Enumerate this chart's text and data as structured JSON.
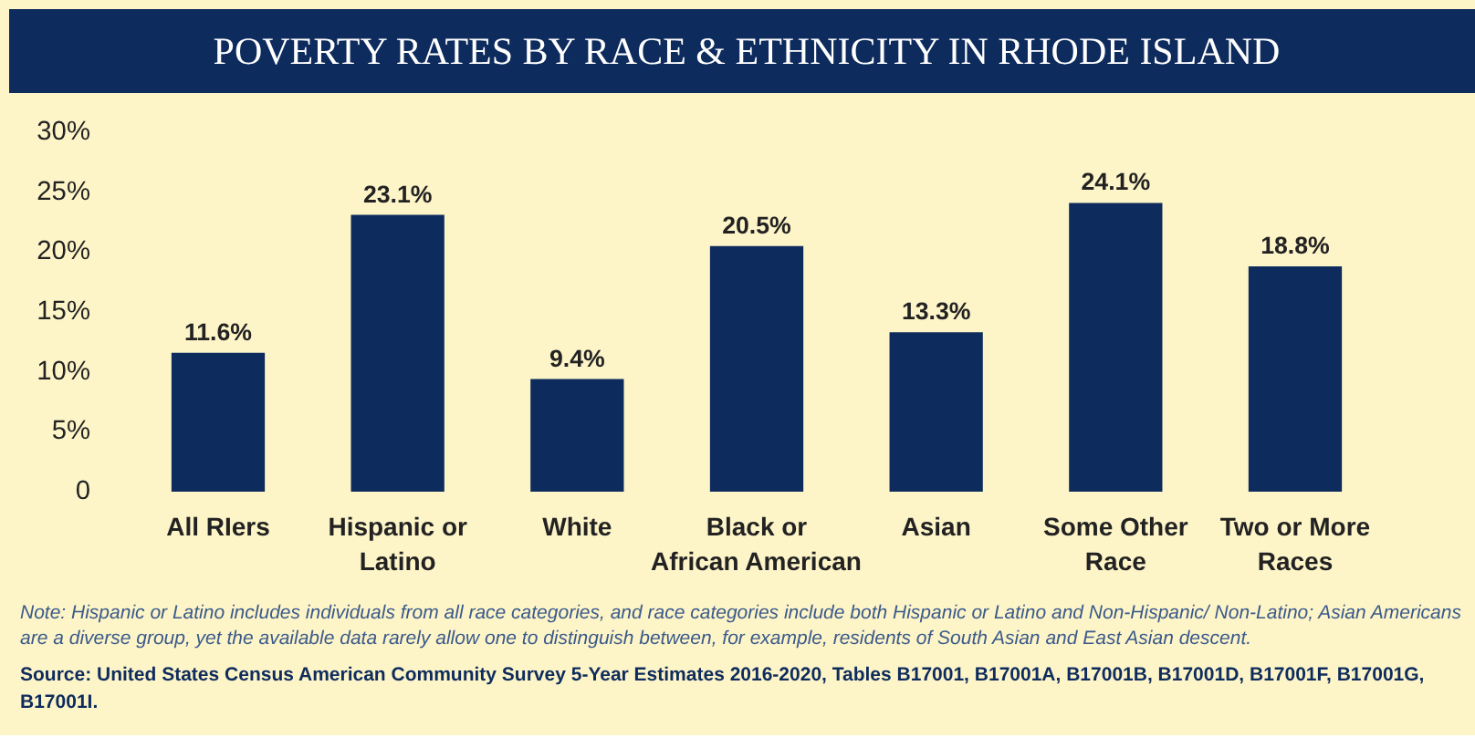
{
  "chart_data": {
    "type": "bar",
    "title": "POVERTY RATES BY RACE & ETHNICITY IN RHODE ISLAND",
    "categories": [
      "All RIers",
      "Hispanic or\nLatino",
      "White",
      "Black or\nAfrican American",
      "Asian",
      "Some Other\nRace",
      "Two or More\nRaces"
    ],
    "values": [
      11.6,
      23.1,
      9.4,
      20.5,
      13.3,
      24.1,
      18.8
    ],
    "value_labels": [
      "11.6%",
      "23.1%",
      "9.4%",
      "20.5%",
      "13.3%",
      "24.1%",
      "18.8%"
    ],
    "color": "#0d2b5c",
    "ylim": [
      0,
      30
    ],
    "yticks": [
      0,
      {
        "value": 5,
        "label": "5%"
      },
      {
        "value": 10,
        "label": "10%"
      },
      {
        "value": 15,
        "label": "15%"
      },
      {
        "value": 20,
        "label": "20%"
      },
      {
        "value": 25,
        "label": "25%"
      },
      {
        "value": 30,
        "label": "30%"
      }
    ],
    "grid": false,
    "annotations": [
      "Note: Hispanic or Latino includes individuals from all race categories, and race categories  include both Hispanic or Latino and Non-Hispanic/ Non-Latino; Asian Americans are a diverse group, yet the available data rarely allow one to distinguish between, for example, residents of South Asian and East Asian descent.",
      "Source: United States Census American Community Survey 5-Year Estimates 2016-2020, Tables B17001, B17001A, B17001B, B17001D, B17001F, B17001G, B17001I."
    ]
  }
}
